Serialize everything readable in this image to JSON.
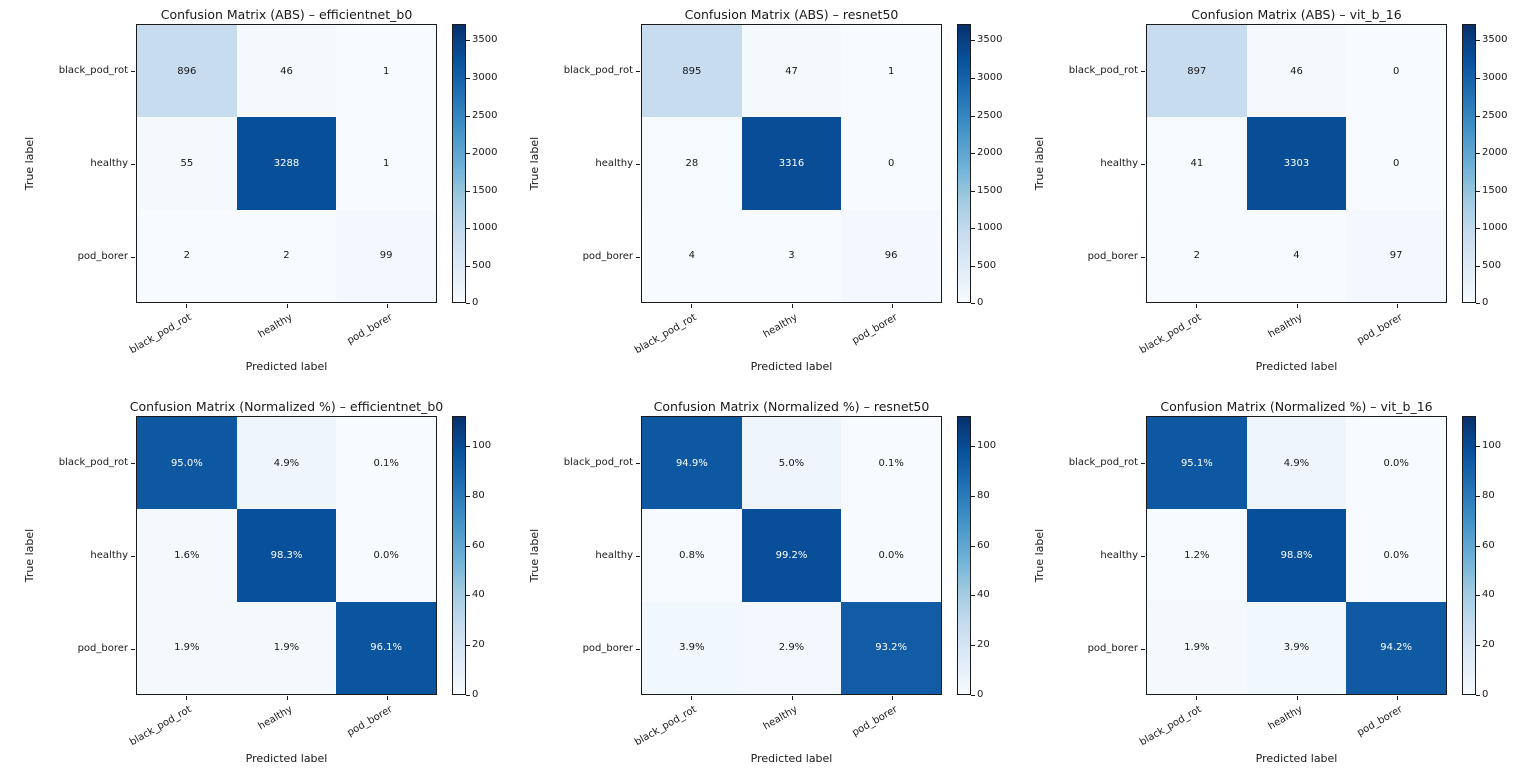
{
  "figure_name": "confusion-matrix-grid",
  "palette": {
    "colormap": "Blues",
    "blues_anchors": [
      "#f7fbff",
      "#deebf7",
      "#c6dbef",
      "#9ecae1",
      "#6baed6",
      "#4292c6",
      "#2171b5",
      "#08519c",
      "#08306b"
    ],
    "text_color": "#1a1a1a",
    "cell_text_light": "#ffffff",
    "background": "#ffffff"
  },
  "chart_data": [
    {
      "type": "heatmap",
      "title": "Confusion Matrix (ABS) – efficientnet_b0",
      "xlabel": "Predicted label",
      "ylabel": "True label",
      "x_ticklabels": [
        "black_pod_rot",
        "healthy",
        "pod_borer"
      ],
      "y_ticklabels": [
        "black_pod_rot",
        "healthy",
        "pod_borer"
      ],
      "values": [
        [
          896,
          46,
          1
        ],
        [
          55,
          3288,
          1
        ],
        [
          2,
          2,
          99
        ]
      ],
      "labels": [
        [
          "896",
          "46",
          "1"
        ],
        [
          "55",
          "3288",
          "1"
        ],
        [
          "2",
          "2",
          "99"
        ]
      ],
      "vmin": 0,
      "vmax": 3720,
      "colorbar_ticks": [
        0,
        500,
        1000,
        1500,
        2000,
        2500,
        3000,
        3500
      ],
      "grid": false,
      "legend_position": "right-colorbar"
    },
    {
      "type": "heatmap",
      "title": "Confusion Matrix (ABS) – resnet50",
      "xlabel": "Predicted label",
      "ylabel": "True label",
      "x_ticklabels": [
        "black_pod_rot",
        "healthy",
        "pod_borer"
      ],
      "y_ticklabels": [
        "black_pod_rot",
        "healthy",
        "pod_borer"
      ],
      "values": [
        [
          895,
          47,
          1
        ],
        [
          28,
          3316,
          0
        ],
        [
          4,
          3,
          96
        ]
      ],
      "labels": [
        [
          "895",
          "47",
          "1"
        ],
        [
          "28",
          "3316",
          "0"
        ],
        [
          "4",
          "3",
          "96"
        ]
      ],
      "vmin": 0,
      "vmax": 3720,
      "colorbar_ticks": [
        0,
        500,
        1000,
        1500,
        2000,
        2500,
        3000,
        3500
      ],
      "grid": false,
      "legend_position": "right-colorbar"
    },
    {
      "type": "heatmap",
      "title": "Confusion Matrix (ABS) – vit_b_16",
      "xlabel": "Predicted label",
      "ylabel": "True label",
      "x_ticklabels": [
        "black_pod_rot",
        "healthy",
        "pod_borer"
      ],
      "y_ticklabels": [
        "black_pod_rot",
        "healthy",
        "pod_borer"
      ],
      "values": [
        [
          897,
          46,
          0
        ],
        [
          41,
          3303,
          0
        ],
        [
          2,
          4,
          97
        ]
      ],
      "labels": [
        [
          "897",
          "46",
          "0"
        ],
        [
          "41",
          "3303",
          "0"
        ],
        [
          "2",
          "4",
          "97"
        ]
      ],
      "vmin": 0,
      "vmax": 3720,
      "colorbar_ticks": [
        0,
        500,
        1000,
        1500,
        2000,
        2500,
        3000,
        3500
      ],
      "grid": false,
      "legend_position": "right-colorbar"
    },
    {
      "type": "heatmap",
      "title": "Confusion Matrix (Normalized %) – efficientnet_b0",
      "xlabel": "Predicted label",
      "ylabel": "True label",
      "x_ticklabels": [
        "black_pod_rot",
        "healthy",
        "pod_borer"
      ],
      "y_ticklabels": [
        "black_pod_rot",
        "healthy",
        "pod_borer"
      ],
      "values": [
        [
          95.0,
          4.9,
          0.1
        ],
        [
          1.6,
          98.3,
          0.0
        ],
        [
          1.9,
          1.9,
          96.1
        ]
      ],
      "labels": [
        [
          "95.0%",
          "4.9%",
          "0.1%"
        ],
        [
          "1.6%",
          "98.3%",
          "0.0%"
        ],
        [
          "1.9%",
          "1.9%",
          "96.1%"
        ]
      ],
      "vmin": 0,
      "vmax": 112,
      "colorbar_ticks": [
        0,
        20,
        40,
        60,
        80,
        100
      ],
      "grid": false,
      "legend_position": "right-colorbar"
    },
    {
      "type": "heatmap",
      "title": "Confusion Matrix (Normalized %) – resnet50",
      "xlabel": "Predicted label",
      "ylabel": "True label",
      "x_ticklabels": [
        "black_pod_rot",
        "healthy",
        "pod_borer"
      ],
      "y_ticklabels": [
        "black_pod_rot",
        "healthy",
        "pod_borer"
      ],
      "values": [
        [
          94.9,
          5.0,
          0.1
        ],
        [
          0.8,
          99.2,
          0.0
        ],
        [
          3.9,
          2.9,
          93.2
        ]
      ],
      "labels": [
        [
          "94.9%",
          "5.0%",
          "0.1%"
        ],
        [
          "0.8%",
          "99.2%",
          "0.0%"
        ],
        [
          "3.9%",
          "2.9%",
          "93.2%"
        ]
      ],
      "vmin": 0,
      "vmax": 112,
      "colorbar_ticks": [
        0,
        20,
        40,
        60,
        80,
        100
      ],
      "grid": false,
      "legend_position": "right-colorbar"
    },
    {
      "type": "heatmap",
      "title": "Confusion Matrix (Normalized %) – vit_b_16",
      "xlabel": "Predicted label",
      "ylabel": "True label",
      "x_ticklabels": [
        "black_pod_rot",
        "healthy",
        "pod_borer"
      ],
      "y_ticklabels": [
        "black_pod_rot",
        "healthy",
        "pod_borer"
      ],
      "values": [
        [
          95.1,
          4.9,
          0.0
        ],
        [
          1.2,
          98.8,
          0.0
        ],
        [
          1.9,
          3.9,
          94.2
        ]
      ],
      "labels": [
        [
          "95.1%",
          "4.9%",
          "0.0%"
        ],
        [
          "1.2%",
          "98.8%",
          "0.0%"
        ],
        [
          "1.9%",
          "3.9%",
          "94.2%"
        ]
      ],
      "vmin": 0,
      "vmax": 112,
      "colorbar_ticks": [
        0,
        20,
        40,
        60,
        80,
        100
      ],
      "grid": false,
      "legend_position": "right-colorbar"
    }
  ]
}
